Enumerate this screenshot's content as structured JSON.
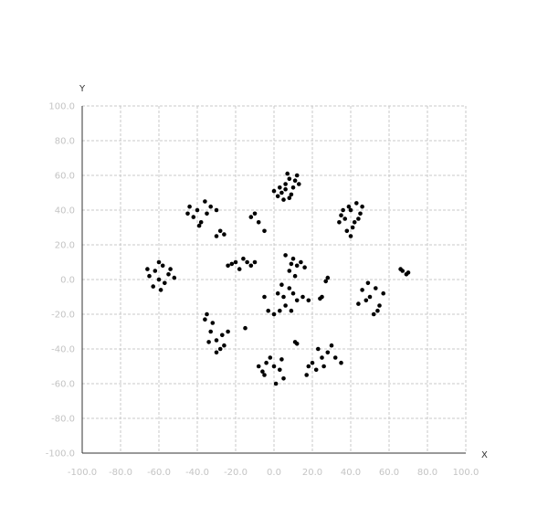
{
  "chart_data": {
    "type": "scatter",
    "title": "",
    "xlabel": "X",
    "ylabel": "Y",
    "xlim": [
      -100,
      100
    ],
    "ylim": [
      -100,
      100
    ],
    "x_ticks": [
      -100,
      -80,
      -60,
      -40,
      -20,
      0,
      20,
      40,
      60,
      80,
      100
    ],
    "y_ticks": [
      -100,
      -80,
      -60,
      -40,
      -20,
      0,
      20,
      40,
      60,
      80,
      100
    ],
    "x_tick_labels": [
      "-100.0",
      "-80.0",
      "-60.0",
      "-40.0",
      "-20.0",
      "0.0",
      "20.0",
      "40.0",
      "60.0",
      "80.0",
      "100.0"
    ],
    "y_tick_labels": [
      "-100.0",
      "-80.0",
      "-60.0",
      "-40.0",
      "-20.0",
      "0.0",
      "20.0",
      "40.0",
      "60.0",
      "80.0",
      "100.0"
    ],
    "grid": true,
    "marker_color": "#000000",
    "series": [
      {
        "values": [
          [
            4,
            50
          ],
          [
            6,
            55
          ],
          [
            8,
            58
          ],
          [
            10,
            53
          ],
          [
            2,
            48
          ],
          [
            7,
            61
          ],
          [
            11,
            57
          ],
          [
            5,
            46
          ],
          [
            9,
            49
          ],
          [
            3,
            53
          ],
          [
            12,
            60
          ],
          [
            0,
            51
          ],
          [
            6,
            52
          ],
          [
            8,
            47
          ],
          [
            13,
            55
          ],
          [
            40,
            40
          ],
          [
            43,
            44
          ],
          [
            45,
            38
          ],
          [
            37,
            35
          ],
          [
            41,
            30
          ],
          [
            35,
            37
          ],
          [
            39,
            42
          ],
          [
            44,
            35
          ],
          [
            38,
            28
          ],
          [
            42,
            33
          ],
          [
            36,
            40
          ],
          [
            46,
            42
          ],
          [
            40,
            25
          ],
          [
            34,
            33
          ],
          [
            -40,
            40
          ],
          [
            -36,
            45
          ],
          [
            -33,
            42
          ],
          [
            -42,
            36
          ],
          [
            -38,
            33
          ],
          [
            -45,
            38
          ],
          [
            -35,
            38
          ],
          [
            -30,
            40
          ],
          [
            -28,
            28
          ],
          [
            -26,
            26
          ],
          [
            -30,
            25
          ],
          [
            -44,
            42
          ],
          [
            -39,
            31
          ],
          [
            -20,
            10
          ],
          [
            -16,
            12
          ],
          [
            -12,
            8
          ],
          [
            -14,
            10
          ],
          [
            -24,
            8
          ],
          [
            -18,
            6
          ],
          [
            -10,
            10
          ],
          [
            -22,
            9
          ],
          [
            -62,
            5
          ],
          [
            -58,
            8
          ],
          [
            -60,
            0
          ],
          [
            -65,
            2
          ],
          [
            -55,
            3
          ],
          [
            -63,
            -4
          ],
          [
            -57,
            -2
          ],
          [
            -60,
            10
          ],
          [
            -52,
            1
          ],
          [
            -66,
            6
          ],
          [
            -59,
            -6
          ],
          [
            -54,
            6
          ],
          [
            10,
            12
          ],
          [
            12,
            8
          ],
          [
            8,
            5
          ],
          [
            14,
            10
          ],
          [
            6,
            14
          ],
          [
            11,
            2
          ],
          [
            16,
            7
          ],
          [
            9,
            9
          ],
          [
            5,
            -10
          ],
          [
            8,
            -5
          ],
          [
            12,
            -12
          ],
          [
            3,
            -18
          ],
          [
            0,
            -20
          ],
          [
            -3,
            -18
          ],
          [
            10,
            -8
          ],
          [
            6,
            -15
          ],
          [
            15,
            -10
          ],
          [
            2,
            -8
          ],
          [
            -5,
            -10
          ],
          [
            9,
            -18
          ],
          [
            4,
            -3
          ],
          [
            18,
            -12
          ],
          [
            50,
            -10
          ],
          [
            53,
            -5
          ],
          [
            55,
            -15
          ],
          [
            48,
            -12
          ],
          [
            52,
            -20
          ],
          [
            57,
            -8
          ],
          [
            46,
            -6
          ],
          [
            54,
            -18
          ],
          [
            49,
            -2
          ],
          [
            44,
            -14
          ],
          [
            67,
            5
          ],
          [
            69,
            3
          ],
          [
            66,
            6
          ],
          [
            70,
            4
          ],
          [
            -35,
            -20
          ],
          [
            -32,
            -25
          ],
          [
            -30,
            -35
          ],
          [
            -28,
            -40
          ],
          [
            -33,
            -30
          ],
          [
            -26,
            -38
          ],
          [
            -30,
            -42
          ],
          [
            -36,
            -23
          ],
          [
            -27,
            -32
          ],
          [
            -34,
            -36
          ],
          [
            -24,
            -30
          ],
          [
            0,
            -50
          ],
          [
            -5,
            -55
          ],
          [
            3,
            -52
          ],
          [
            -2,
            -45
          ],
          [
            5,
            -57
          ],
          [
            -8,
            -50
          ],
          [
            1,
            -60
          ],
          [
            -4,
            -48
          ],
          [
            4,
            -46
          ],
          [
            -6,
            -53
          ],
          [
            20,
            -48
          ],
          [
            25,
            -45
          ],
          [
            22,
            -52
          ],
          [
            28,
            -42
          ],
          [
            18,
            -50
          ],
          [
            30,
            -38
          ],
          [
            26,
            -50
          ],
          [
            23,
            -40
          ],
          [
            32,
            -45
          ],
          [
            17,
            -55
          ],
          [
            -10,
            38
          ],
          [
            -8,
            33
          ],
          [
            -5,
            28
          ],
          [
            -12,
            36
          ],
          [
            27,
            -1
          ],
          [
            28,
            1
          ],
          [
            25,
            -10
          ],
          [
            24,
            -11
          ],
          [
            11,
            -36
          ],
          [
            12,
            -37
          ],
          [
            -15,
            -28
          ],
          [
            35,
            -48
          ]
        ]
      }
    ]
  }
}
